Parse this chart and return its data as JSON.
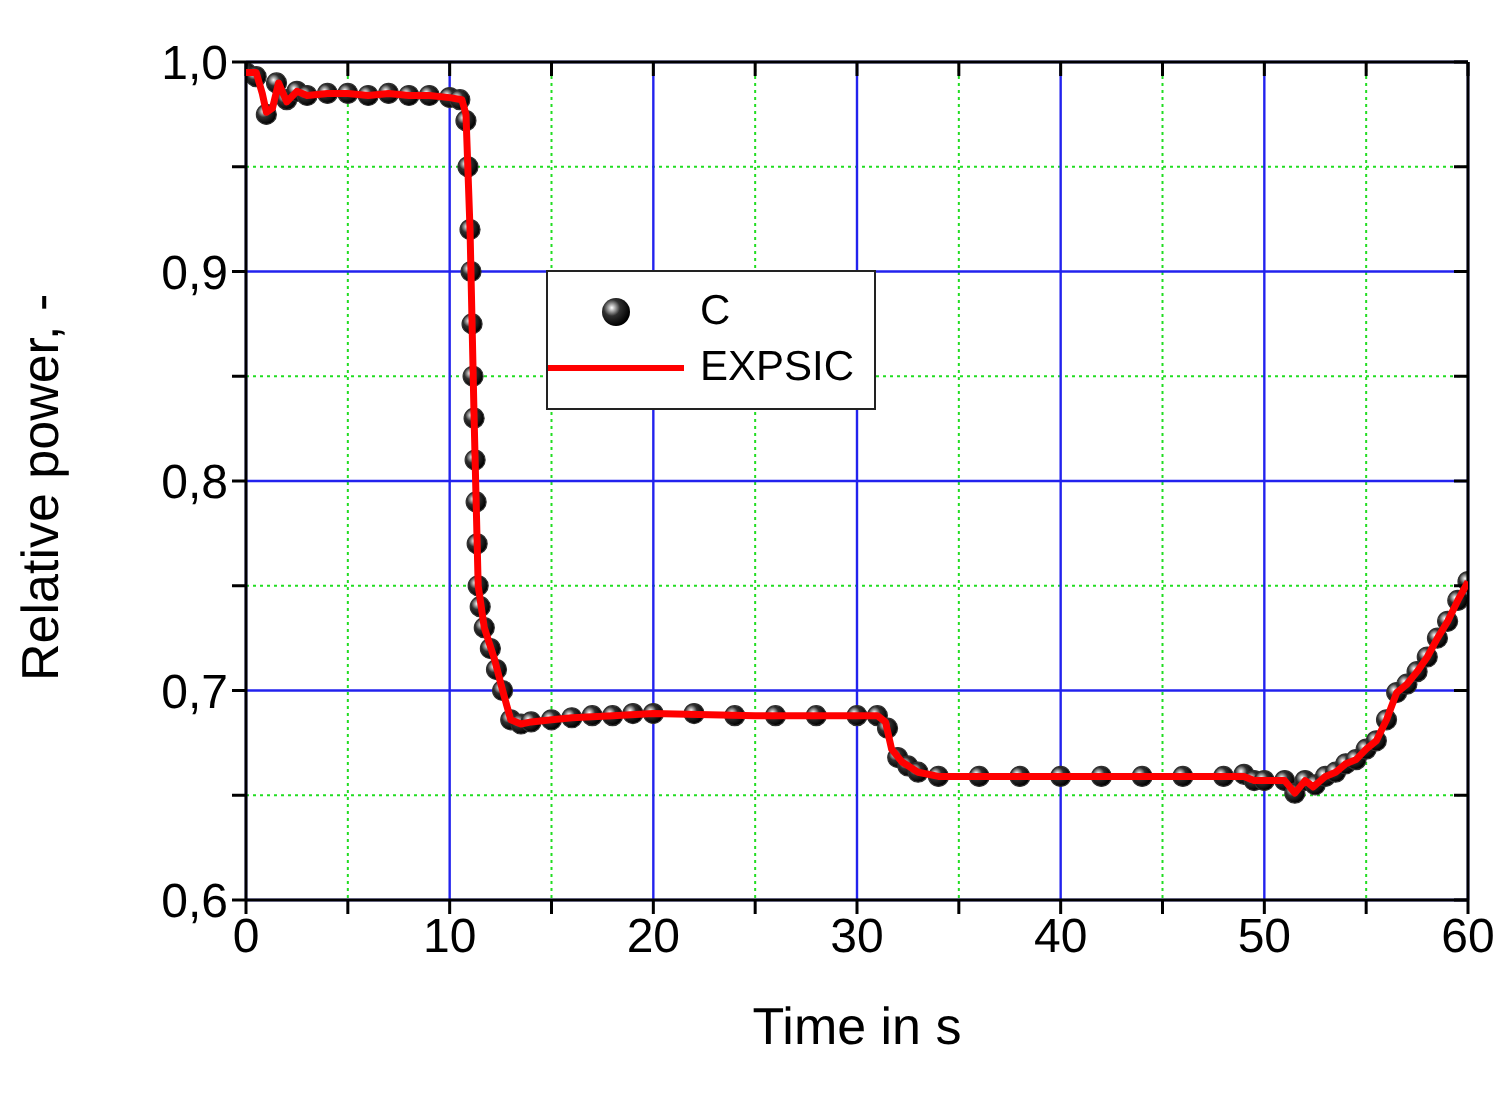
{
  "chart_data": {
    "type": "line",
    "xlabel": "Time in s",
    "ylabel": "Relative power, -",
    "xlim": [
      0,
      60
    ],
    "xticks": [
      0,
      {
        "value": 5,
        "label": null
      },
      10,
      {
        "value": 15,
        "label": null
      },
      20,
      {
        "value": 25,
        "label": null
      },
      30,
      {
        "value": 35,
        "label": null
      },
      40,
      {
        "value": 45,
        "label": null
      },
      50,
      {
        "value": 55,
        "label": null
      },
      60
    ],
    "ylim": [
      0.6,
      1.0
    ],
    "yticks": [
      {
        "value": 0.6,
        "label": "0,6"
      },
      {
        "value": 0.65,
        "label": null
      },
      {
        "value": 0.7,
        "label": "0,7"
      },
      {
        "value": 0.75,
        "label": null
      },
      {
        "value": 0.8,
        "label": "0,8"
      },
      {
        "value": 0.85,
        "label": null
      },
      {
        "value": 0.9,
        "label": "0,9"
      },
      {
        "value": 0.95,
        "label": null
      },
      {
        "value": 1.0,
        "label": "1,0"
      }
    ],
    "grid": true,
    "legend": "top left",
    "series": [
      {
        "name": "C",
        "type": "scatter",
        "marker": "circle",
        "color": "#303030",
        "x": [
          0,
          0.5,
          1,
          1.5,
          2,
          2.5,
          3,
          4,
          5,
          6,
          7,
          8,
          9,
          10,
          10.5,
          10.8,
          10.9,
          11,
          11.05,
          11.1,
          11.15,
          11.2,
          11.25,
          11.3,
          11.35,
          11.4,
          11.5,
          11.7,
          12,
          12.3,
          12.6,
          13,
          13.5,
          14,
          15,
          16,
          17,
          18,
          19,
          20,
          22,
          24,
          26,
          28,
          30,
          31,
          31.5,
          32,
          32.5,
          33,
          34,
          36,
          38,
          40,
          42,
          44,
          46,
          48,
          49,
          49.5,
          50,
          51,
          51.5,
          52,
          52.5,
          53,
          53.5,
          54,
          54.5,
          55,
          55.5,
          56,
          56.5,
          57,
          57.5,
          58,
          58.5,
          59,
          59.5,
          60
        ],
        "values": [
          0.995,
          0.993,
          0.975,
          0.99,
          0.982,
          0.986,
          0.984,
          0.985,
          0.985,
          0.984,
          0.985,
          0.984,
          0.984,
          0.983,
          0.982,
          0.972,
          0.95,
          0.92,
          0.9,
          0.875,
          0.85,
          0.83,
          0.81,
          0.79,
          0.77,
          0.75,
          0.74,
          0.73,
          0.72,
          0.71,
          0.7,
          0.686,
          0.684,
          0.685,
          0.686,
          0.687,
          0.688,
          0.688,
          0.689,
          0.689,
          0.689,
          0.688,
          0.688,
          0.688,
          0.688,
          0.688,
          0.682,
          0.668,
          0.664,
          0.661,
          0.659,
          0.659,
          0.659,
          0.659,
          0.659,
          0.659,
          0.659,
          0.659,
          0.66,
          0.657,
          0.657,
          0.657,
          0.651,
          0.657,
          0.655,
          0.659,
          0.661,
          0.665,
          0.667,
          0.672,
          0.676,
          0.686,
          0.699,
          0.703,
          0.709,
          0.716,
          0.725,
          0.733,
          0.743,
          0.752
        ]
      },
      {
        "name": "EXPSIC",
        "type": "line",
        "marker": "none",
        "line_style": "solid",
        "color": "#ff0000",
        "x": [
          0,
          0.5,
          0.8,
          1,
          1.3,
          1.6,
          2,
          2.5,
          3,
          4,
          5,
          6,
          7,
          8,
          9,
          10,
          10.6,
          10.8,
          11,
          11.2,
          11.4,
          11.7,
          12.2,
          12.6,
          13,
          13.5,
          14,
          15,
          16,
          18,
          20,
          25,
          28,
          31,
          31.4,
          31.7,
          32.2,
          33,
          34,
          40,
          45,
          49,
          49.5,
          51,
          51.5,
          52,
          52.4,
          53,
          53.5,
          54,
          54.5,
          55,
          55.5,
          56,
          56.5,
          57,
          57.5,
          58,
          58.5,
          59,
          59.5,
          60
        ],
        "values": [
          0.995,
          0.995,
          0.985,
          0.976,
          0.978,
          0.99,
          0.981,
          0.986,
          0.984,
          0.985,
          0.985,
          0.984,
          0.985,
          0.984,
          0.984,
          0.983,
          0.982,
          0.975,
          0.92,
          0.83,
          0.75,
          0.73,
          0.715,
          0.7,
          0.686,
          0.684,
          0.685,
          0.686,
          0.687,
          0.688,
          0.689,
          0.688,
          0.688,
          0.688,
          0.685,
          0.672,
          0.666,
          0.661,
          0.659,
          0.659,
          0.659,
          0.659,
          0.657,
          0.657,
          0.651,
          0.657,
          0.654,
          0.659,
          0.661,
          0.665,
          0.667,
          0.672,
          0.676,
          0.686,
          0.699,
          0.703,
          0.709,
          0.716,
          0.725,
          0.733,
          0.743,
          0.752
        ]
      }
    ]
  }
}
